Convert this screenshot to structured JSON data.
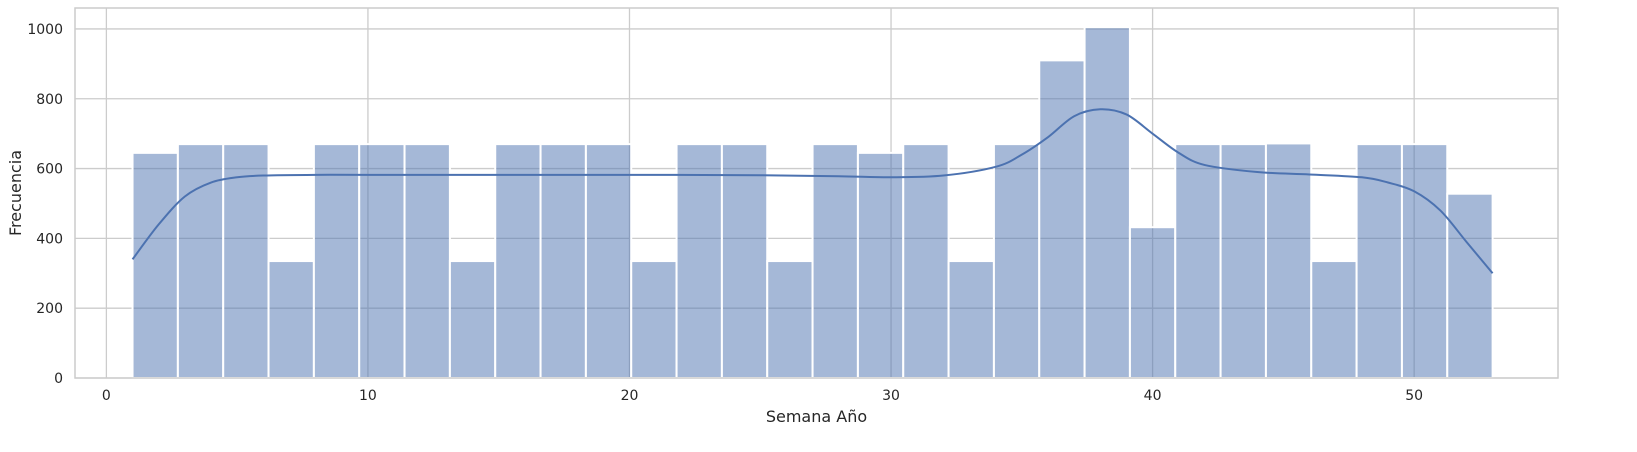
{
  "chart_data": {
    "type": "bar",
    "subtype": "histogram-with-kde",
    "title": "",
    "xlabel": "Semana Año",
    "ylabel": "Frecuencia",
    "xlim": [
      -1.2,
      55.5
    ],
    "ylim": [
      0,
      1060
    ],
    "xticks": [
      0,
      10,
      20,
      30,
      40,
      50
    ],
    "yticks": [
      0,
      200,
      400,
      600,
      800,
      1000
    ],
    "grid": true,
    "bar_color": "#4c72b0",
    "line_color": "#4c72b0",
    "bins": {
      "start": 1,
      "end": 53,
      "counts": [
        645,
        670,
        670,
        335,
        670,
        670,
        670,
        335,
        670,
        670,
        670,
        335,
        670,
        670,
        335,
        670,
        645,
        670,
        335,
        670,
        910,
        1005,
        432,
        670,
        670,
        672,
        335,
        670,
        670,
        528
      ]
    },
    "kde": {
      "x": [
        1,
        2,
        3,
        4,
        5,
        6,
        8,
        10,
        15,
        20,
        25,
        28,
        30,
        32,
        34,
        35,
        36,
        37,
        38,
        39,
        40,
        41,
        42,
        44,
        46,
        48,
        49,
        50,
        51,
        52,
        53
      ],
      "y": [
        340,
        440,
        520,
        560,
        575,
        580,
        582,
        582,
        582,
        582,
        581,
        578,
        575,
        580,
        605,
        640,
        690,
        750,
        770,
        755,
        700,
        645,
        610,
        590,
        583,
        575,
        560,
        535,
        480,
        390,
        300
      ]
    }
  }
}
